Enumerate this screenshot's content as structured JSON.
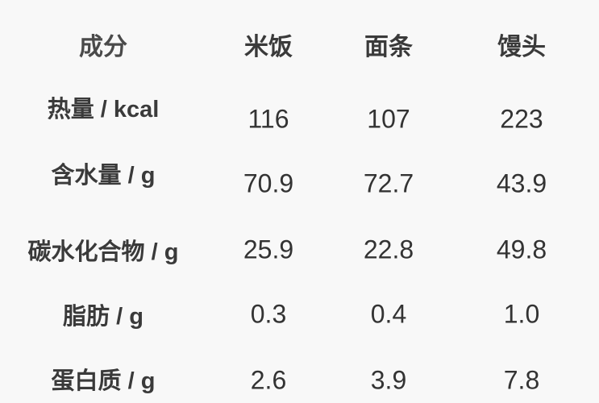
{
  "table": {
    "headers": [
      "成分",
      "米饭",
      "面条",
      "馒头"
    ],
    "rows": [
      {
        "label": "热量 / kcal",
        "values": [
          "116",
          "107",
          "223"
        ]
      },
      {
        "label": "含水量 / g",
        "values": [
          "70.9",
          "72.7",
          "43.9"
        ]
      },
      {
        "label": "碳水化合物 / g",
        "values": [
          "25.9",
          "22.8",
          "49.8"
        ]
      },
      {
        "label": "脂肪 / g",
        "values": [
          "0.3",
          "0.4",
          "1.0"
        ]
      },
      {
        "label": "蛋白质 / g",
        "values": [
          "2.6",
          "3.9",
          "7.8"
        ]
      }
    ]
  }
}
